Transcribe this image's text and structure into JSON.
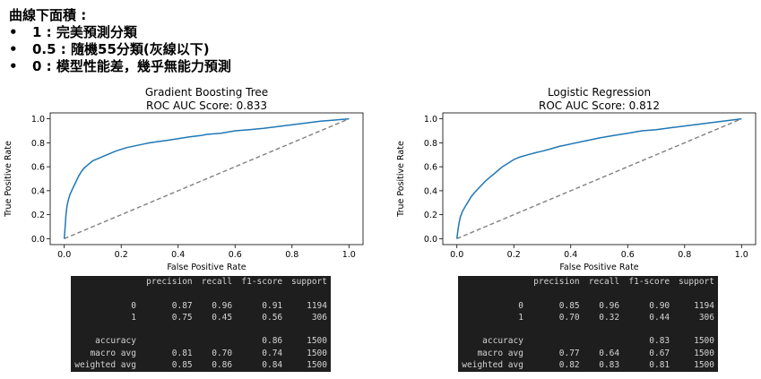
{
  "notes": {
    "heading": "曲線下面積 :",
    "bullets": [
      "1 : 完美預測分類",
      "0.5 : 隨機55分類(灰線以下)",
      "0 : 模型性能差，幾乎無能力預測"
    ]
  },
  "chart_data": [
    {
      "type": "line",
      "title": "Gradient Boosting Tree",
      "subtitle": "ROC AUC Score: 0.833",
      "xlabel": "False Positive Rate",
      "ylabel": "True Positive Rate",
      "xlim": [
        0.0,
        1.0
      ],
      "ylim": [
        0.0,
        1.0
      ],
      "xticks": [
        "0.0",
        "0.2",
        "0.4",
        "0.6",
        "0.8",
        "1.0"
      ],
      "yticks": [
        "0.0",
        "0.2",
        "0.4",
        "0.6",
        "0.8",
        "1.0"
      ],
      "grid": false,
      "colors": {
        "roc": "#1f77b4",
        "diagonal": "#808080"
      },
      "roc_curve": {
        "x": [
          0.0,
          0.003,
          0.006,
          0.01,
          0.015,
          0.02,
          0.03,
          0.04,
          0.05,
          0.06,
          0.07,
          0.08,
          0.09,
          0.1,
          0.12,
          0.14,
          0.16,
          0.18,
          0.2,
          0.22,
          0.25,
          0.28,
          0.3,
          0.33,
          0.36,
          0.4,
          0.44,
          0.48,
          0.5,
          0.55,
          0.6,
          0.65,
          0.7,
          0.75,
          0.8,
          0.85,
          0.9,
          0.95,
          1.0
        ],
        "y": [
          0.0,
          0.1,
          0.2,
          0.28,
          0.33,
          0.37,
          0.42,
          0.47,
          0.52,
          0.56,
          0.59,
          0.61,
          0.63,
          0.65,
          0.67,
          0.69,
          0.71,
          0.73,
          0.745,
          0.76,
          0.775,
          0.79,
          0.8,
          0.81,
          0.82,
          0.835,
          0.85,
          0.86,
          0.87,
          0.88,
          0.9,
          0.91,
          0.92,
          0.935,
          0.95,
          0.965,
          0.98,
          0.99,
          1.0
        ]
      },
      "diagonal": {
        "x": [
          0.0,
          1.0
        ],
        "y": [
          0.0,
          1.0
        ]
      }
    },
    {
      "type": "line",
      "title": "Logistic Regression",
      "subtitle": "ROC AUC Score: 0.812",
      "xlabel": "False Positive Rate",
      "ylabel": "True Positive Rate",
      "xlim": [
        0.0,
        1.0
      ],
      "ylim": [
        0.0,
        1.0
      ],
      "xticks": [
        "0.0",
        "0.2",
        "0.4",
        "0.6",
        "0.8",
        "1.0"
      ],
      "yticks": [
        "0.0",
        "0.2",
        "0.4",
        "0.6",
        "0.8",
        "1.0"
      ],
      "grid": false,
      "colors": {
        "roc": "#1f77b4",
        "diagonal": "#808080"
      },
      "roc_curve": {
        "x": [
          0.0,
          0.003,
          0.007,
          0.012,
          0.02,
          0.03,
          0.04,
          0.05,
          0.06,
          0.08,
          0.1,
          0.12,
          0.14,
          0.16,
          0.18,
          0.2,
          0.22,
          0.25,
          0.28,
          0.3,
          0.33,
          0.36,
          0.4,
          0.44,
          0.48,
          0.5,
          0.55,
          0.6,
          0.65,
          0.7,
          0.75,
          0.8,
          0.85,
          0.9,
          0.95,
          1.0
        ],
        "y": [
          0.0,
          0.06,
          0.12,
          0.18,
          0.23,
          0.27,
          0.31,
          0.35,
          0.38,
          0.43,
          0.48,
          0.52,
          0.56,
          0.6,
          0.63,
          0.66,
          0.68,
          0.7,
          0.72,
          0.73,
          0.75,
          0.77,
          0.79,
          0.81,
          0.83,
          0.84,
          0.86,
          0.88,
          0.9,
          0.91,
          0.925,
          0.94,
          0.955,
          0.97,
          0.985,
          1.0
        ]
      },
      "diagonal": {
        "x": [
          0.0,
          1.0
        ],
        "y": [
          0.0,
          1.0
        ]
      }
    }
  ],
  "reports": [
    {
      "header": [
        "",
        "precision",
        "recall",
        "f1-score",
        "support"
      ],
      "rows": [
        [
          "0",
          "0.87",
          "0.96",
          "0.91",
          "1194"
        ],
        [
          "1",
          "0.75",
          "0.45",
          "0.56",
          "306"
        ],
        [
          "",
          "",
          "",
          "",
          ""
        ],
        [
          "accuracy",
          "",
          "",
          "0.86",
          "1500"
        ],
        [
          "macro avg",
          "0.81",
          "0.70",
          "0.74",
          "1500"
        ],
        [
          "weighted avg",
          "0.85",
          "0.86",
          "0.84",
          "1500"
        ]
      ]
    },
    {
      "header": [
        "",
        "precision",
        "recall",
        "f1-score",
        "support"
      ],
      "rows": [
        [
          "0",
          "0.85",
          "0.96",
          "0.90",
          "1194"
        ],
        [
          "1",
          "0.70",
          "0.32",
          "0.44",
          "306"
        ],
        [
          "",
          "",
          "",
          "",
          ""
        ],
        [
          "accuracy",
          "",
          "",
          "0.83",
          "1500"
        ],
        [
          "macro avg",
          "0.77",
          "0.64",
          "0.67",
          "1500"
        ],
        [
          "weighted avg",
          "0.82",
          "0.83",
          "0.81",
          "1500"
        ]
      ]
    }
  ]
}
